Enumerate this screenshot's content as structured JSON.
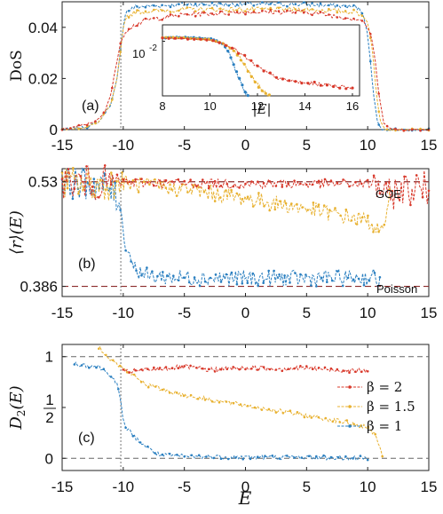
{
  "colors": {
    "beta2": "#d8382a",
    "beta15": "#e8b130",
    "beta1": "#2a7fc0",
    "dashed": "#555555",
    "refline": "#8b2b2b"
  },
  "chart_data": [
    {
      "type": "line",
      "panel_label": "(a)",
      "ylabel": "DoS",
      "xlim": [
        -15,
        15
      ],
      "ylim": [
        0,
        0.05
      ],
      "xticks": [
        "-15",
        "-10",
        "-5",
        "0",
        "5",
        "10",
        "15"
      ],
      "yticks": [
        "0",
        "0.02",
        "0.04"
      ],
      "ytick_values": [
        0,
        0.02,
        0.04
      ],
      "vline_x": -10.2,
      "series": [
        {
          "color_key": "beta2",
          "x": [
            -15,
            -13,
            -12,
            -11.5,
            -11,
            -10.8,
            -10.5,
            -10.2,
            -10,
            -9.5,
            -8,
            -5,
            0,
            5,
            8,
            9.5,
            10,
            10.3,
            10.6,
            10.9,
            11.3,
            12,
            15
          ],
          "y": [
            0,
            0.002,
            0.004,
            0.007,
            0.014,
            0.02,
            0.027,
            0.034,
            0.037,
            0.04,
            0.043,
            0.045,
            0.046,
            0.046,
            0.044,
            0.043,
            0.04,
            0.036,
            0.028,
            0.014,
            0.003,
            0,
            0
          ]
        },
        {
          "color_key": "beta15",
          "x": [
            -15,
            -13,
            -12,
            -11,
            -10.5,
            -10.2,
            -10,
            -9.8,
            -9,
            -5,
            0,
            5,
            9,
            9.8,
            10.1,
            10.4,
            10.7,
            11,
            11.5,
            15
          ],
          "y": [
            0,
            0.001,
            0.003,
            0.01,
            0.02,
            0.031,
            0.04,
            0.044,
            0.046,
            0.047,
            0.047,
            0.047,
            0.046,
            0.044,
            0.04,
            0.03,
            0.015,
            0.004,
            0,
            0
          ]
        },
        {
          "color_key": "beta1",
          "x": [
            -15,
            -13,
            -12,
            -11,
            -10.5,
            -10.2,
            -10,
            -9.8,
            -9,
            -5,
            0,
            5,
            9,
            9.6,
            9.9,
            10.2,
            10.5,
            10.8,
            11.2,
            15
          ],
          "y": [
            0,
            0.001,
            0.003,
            0.01,
            0.02,
            0.032,
            0.041,
            0.046,
            0.048,
            0.049,
            0.049,
            0.049,
            0.048,
            0.046,
            0.04,
            0.028,
            0.013,
            0.003,
            0,
            0
          ]
        }
      ],
      "inset": {
        "type": "line",
        "xlabel": "|E|",
        "log_y": true,
        "xlim": [
          8,
          16.3
        ],
        "ylim_exp": [
          -3.5,
          -1.55
        ],
        "xticks": [
          "8",
          "10",
          "12",
          "14",
          "16"
        ],
        "ytick_label": "10-2",
        "series": [
          {
            "color_key": "beta2",
            "x": [
              8,
              9,
              10,
              10.5,
              11,
              11.5,
              12,
              12.5,
              13,
              14,
              15,
              16
            ],
            "y_log10": [
              -1.92,
              -1.93,
              -1.96,
              -2.05,
              -2.2,
              -2.45,
              -2.7,
              -2.9,
              -3.05,
              -3.15,
              -3.2,
              -3.28
            ]
          },
          {
            "color_key": "beta15",
            "x": [
              8,
              9,
              10,
              10.5,
              11,
              11.3,
              11.6,
              11.9,
              12.2,
              12.5
            ],
            "y_log10": [
              -1.9,
              -1.91,
              -1.95,
              -2.05,
              -2.25,
              -2.5,
              -2.8,
              -3.1,
              -3.35,
              -3.5
            ]
          },
          {
            "color_key": "beta1",
            "x": [
              8,
              9,
              10,
              10.5,
              10.8,
              11,
              11.2,
              11.4,
              11.6
            ],
            "y_log10": [
              -1.9,
              -1.9,
              -1.93,
              -2.05,
              -2.3,
              -2.65,
              -3.0,
              -3.3,
              -3.5
            ]
          }
        ]
      }
    },
    {
      "type": "line",
      "panel_label": "(b)",
      "ylabel": "⟨r⟩(E)",
      "xlim": [
        -15,
        15
      ],
      "ylim": [
        0.372,
        0.548
      ],
      "xticks": [
        "-15",
        "-10",
        "-5",
        "0",
        "5",
        "10",
        "15"
      ],
      "yticks": [
        "0.386",
        "0.53"
      ],
      "ytick_values": [
        0.386,
        0.53
      ],
      "vline_x": -10.2,
      "reference_lines": [
        {
          "label": "GOE",
          "y": 0.53
        },
        {
          "label": "Poisson",
          "y": 0.386
        }
      ],
      "series": [
        {
          "color_key": "beta2",
          "x": [
            -15,
            -12,
            -10,
            -5,
            0,
            5,
            10,
            11,
            11.5,
            12,
            13,
            15
          ],
          "y": [
            0.53,
            0.528,
            0.529,
            0.528,
            0.527,
            0.527,
            0.527,
            0.525,
            0.505,
            0.515,
            0.52,
            0.522
          ]
        },
        {
          "color_key": "beta15",
          "x": [
            -15,
            -12,
            -10,
            -5,
            0,
            5,
            10,
            10.5,
            11,
            11.4,
            11.8
          ],
          "y": [
            0.53,
            0.525,
            0.528,
            0.52,
            0.507,
            0.493,
            0.476,
            0.47,
            0.46,
            0.46,
            0.53
          ]
        },
        {
          "color_key": "beta1",
          "x": [
            -15,
            -12,
            -11,
            -10.2,
            -10,
            -9.5,
            -9,
            -8,
            -5,
            0,
            5,
            10,
            10.5,
            11
          ],
          "y": [
            0.53,
            0.525,
            0.52,
            0.5,
            0.455,
            0.43,
            0.41,
            0.4,
            0.398,
            0.397,
            0.397,
            0.398,
            0.4,
            0.39
          ]
        }
      ]
    },
    {
      "type": "line",
      "panel_label": "(c)",
      "ylabel": "D2(E)",
      "xlabel": "E",
      "xlim": [
        -15,
        15
      ],
      "ylim": [
        -0.12,
        1.12
      ],
      "xticks": [
        "-15",
        "-10",
        "-5",
        "0",
        "5",
        "10",
        "15"
      ],
      "yticks": [
        "0",
        "1/2",
        "1"
      ],
      "ytick_values": [
        0,
        0.5,
        1
      ],
      "vline_x": -10.2,
      "hlines_y": [
        0,
        1
      ],
      "legend": {
        "placement": "right",
        "entries": [
          {
            "color_key": "beta2",
            "label": "β = 2"
          },
          {
            "color_key": "beta15",
            "label": "β = 1.5"
          },
          {
            "color_key": "beta1",
            "label": "β = 1"
          }
        ]
      },
      "series": [
        {
          "color_key": "beta2",
          "x": [
            -10,
            -7,
            -5,
            -3,
            0,
            3,
            5,
            7,
            10
          ],
          "y": [
            0.85,
            0.88,
            0.9,
            0.87,
            0.89,
            0.88,
            0.89,
            0.87,
            0.86
          ]
        },
        {
          "color_key": "beta15",
          "x": [
            -12,
            -11,
            -10,
            -8,
            -5,
            0,
            5,
            8,
            10,
            10.5,
            11,
            11.2
          ],
          "y": [
            1.1,
            0.97,
            0.88,
            0.72,
            0.62,
            0.52,
            0.42,
            0.36,
            0.3,
            0.25,
            0.12,
            0.0
          ]
        },
        {
          "color_key": "beta1",
          "x": [
            -14,
            -12,
            -11,
            -10.5,
            -10.2,
            -10,
            -9.5,
            -9,
            -8,
            -7,
            -5,
            0,
            5,
            10
          ],
          "y": [
            0.93,
            0.9,
            0.82,
            0.72,
            0.55,
            0.35,
            0.27,
            0.2,
            0.1,
            0.03,
            0.02,
            0.01,
            0.01,
            0.0
          ]
        }
      ]
    }
  ]
}
